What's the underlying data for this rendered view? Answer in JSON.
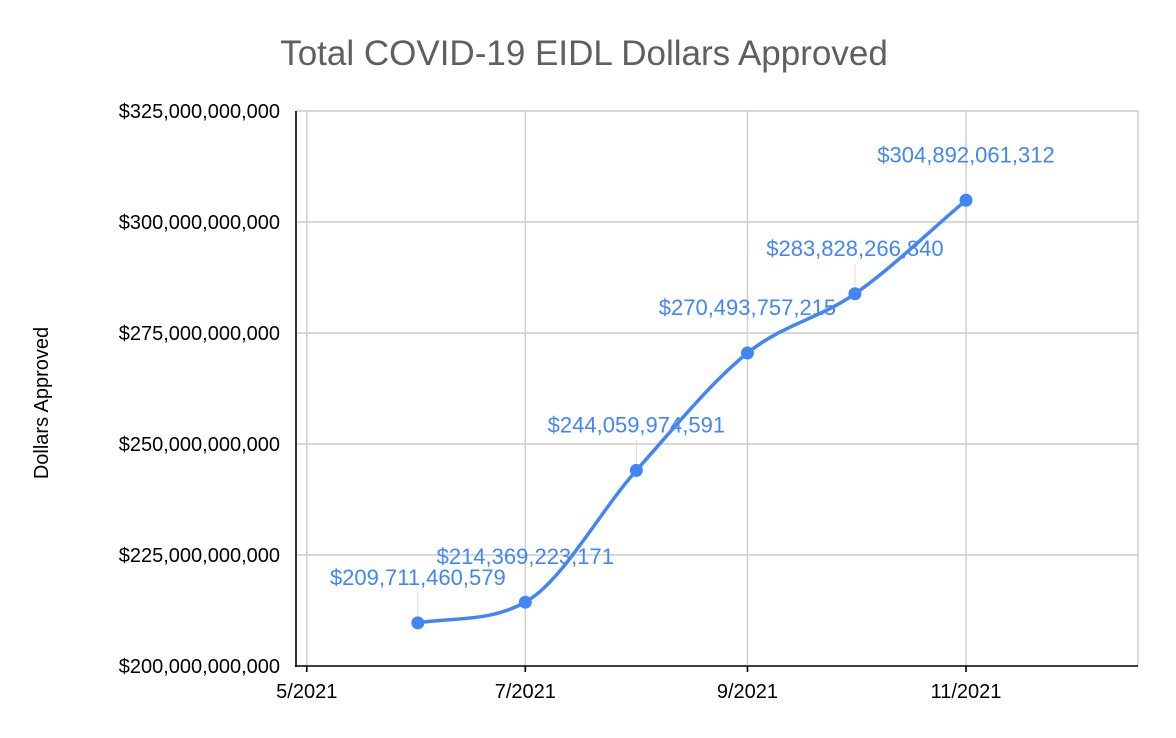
{
  "chart_data": {
    "type": "line",
    "title": "Total COVID-19 EIDL Dollars Approved",
    "xlabel": "",
    "ylabel": "Dollars Approved",
    "x_tick_labels": [
      "5/2021",
      "7/2021",
      "9/2021",
      "11/2021"
    ],
    "x_tick_values": [
      "2021-05-01",
      "2021-07-01",
      "2021-09-01",
      "2021-11-01"
    ],
    "xlim": [
      "2021-04-28",
      "2021-12-19"
    ],
    "y_tick_labels": [
      "$325,000,000,000",
      "$300,000,000,000",
      "$275,000,000,000",
      "$250,000,000,000",
      "$225,000,000,000",
      "$200,000,000,000"
    ],
    "ylim": [
      200000000000,
      325000000000
    ],
    "grid": true,
    "smooth": true,
    "series": [
      {
        "name": "",
        "color": "#4285f4",
        "points": [
          {
            "x": "2021-06-01",
            "y": 209711460579,
            "label": "$209,711,460,579"
          },
          {
            "x": "2021-07-01",
            "y": 214369223171,
            "label": "$214,369,223,171"
          },
          {
            "x": "2021-08-01",
            "y": 244059974591,
            "label": "$244,059,974,591"
          },
          {
            "x": "2021-09-01",
            "y": 270493757215,
            "label": "$270,493,757,215"
          },
          {
            "x": "2021-10-01",
            "y": 283828266840,
            "label": "$283,828,266,840"
          },
          {
            "x": "2021-11-01",
            "y": 304892061312,
            "label": "$304,892,061,312"
          }
        ]
      }
    ]
  }
}
